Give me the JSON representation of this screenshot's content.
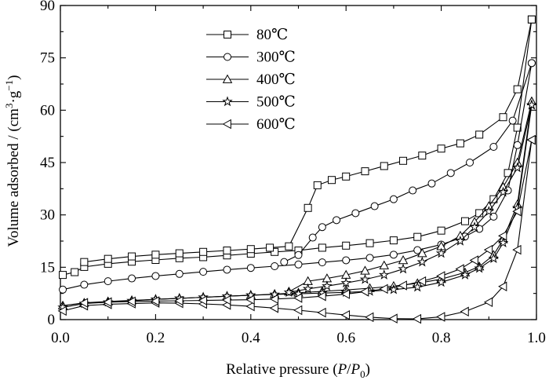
{
  "chart_data": {
    "type": "line",
    "xlabel": "Relative pressure (P/P0)",
    "xlabel_parts": {
      "main": "Relative pressure (",
      "var1": "P",
      "slash": "/",
      "var2": "P",
      "sub": "0",
      "close": ")"
    },
    "ylabel": "Volume adsorbed / (cm3·g−1)",
    "ylabel_parts": {
      "main": "Volume adsorbed / (cm",
      "sup1": "3",
      "mid": "·g",
      "sup2": "−1",
      "close": ")"
    },
    "xlim": [
      0.0,
      1.0
    ],
    "ylim": [
      0,
      90
    ],
    "x_ticks": [
      "0.0",
      "0.2",
      "0.4",
      "0.6",
      "0.8",
      "1.0"
    ],
    "x_tick_values": [
      0.0,
      0.2,
      0.4,
      0.6,
      0.8,
      1.0
    ],
    "y_ticks": [
      "0",
      "15",
      "30",
      "45",
      "60",
      "75",
      "90"
    ],
    "y_tick_values": [
      0,
      15,
      30,
      45,
      60,
      75,
      90
    ],
    "grid": false,
    "legend_position": "top-left",
    "series": [
      {
        "name": "80℃",
        "marker": "square",
        "adsorption": [
          [
            0.005,
            12.8
          ],
          [
            0.03,
            13.6
          ],
          [
            0.05,
            15.1
          ],
          [
            0.1,
            16.0
          ],
          [
            0.15,
            16.6
          ],
          [
            0.2,
            17.1
          ],
          [
            0.25,
            17.6
          ],
          [
            0.3,
            17.9
          ],
          [
            0.35,
            18.4
          ],
          [
            0.4,
            18.9
          ],
          [
            0.45,
            19.4
          ],
          [
            0.5,
            19.8
          ],
          [
            0.55,
            20.6
          ],
          [
            0.6,
            21.2
          ],
          [
            0.65,
            21.9
          ],
          [
            0.7,
            22.7
          ],
          [
            0.75,
            23.7
          ],
          [
            0.8,
            25.5
          ],
          [
            0.85,
            28.2
          ],
          [
            0.88,
            30.5
          ],
          [
            0.91,
            34.5
          ],
          [
            0.94,
            42.0
          ],
          [
            0.96,
            55.0
          ],
          [
            0.99,
            86.0
          ]
        ],
        "desorption": [
          [
            0.99,
            86.0
          ],
          [
            0.96,
            66.0
          ],
          [
            0.93,
            58.0
          ],
          [
            0.88,
            53.0
          ],
          [
            0.84,
            50.5
          ],
          [
            0.8,
            49.0
          ],
          [
            0.76,
            47.0
          ],
          [
            0.72,
            45.5
          ],
          [
            0.68,
            44.0
          ],
          [
            0.64,
            42.5
          ],
          [
            0.6,
            41.0
          ],
          [
            0.57,
            40.0
          ],
          [
            0.54,
            38.5
          ],
          [
            0.52,
            32.0
          ],
          [
            0.48,
            21.0
          ],
          [
            0.44,
            20.6
          ],
          [
            0.4,
            20.2
          ],
          [
            0.35,
            19.8
          ],
          [
            0.3,
            19.4
          ],
          [
            0.25,
            19.0
          ],
          [
            0.2,
            18.6
          ],
          [
            0.15,
            18.1
          ],
          [
            0.1,
            17.4
          ],
          [
            0.05,
            16.5
          ]
        ]
      },
      {
        "name": "300℃",
        "marker": "circle",
        "adsorption": [
          [
            0.005,
            8.6
          ],
          [
            0.05,
            10.0
          ],
          [
            0.1,
            11.0
          ],
          [
            0.15,
            11.8
          ],
          [
            0.2,
            12.5
          ],
          [
            0.25,
            13.1
          ],
          [
            0.3,
            13.7
          ],
          [
            0.35,
            14.3
          ],
          [
            0.4,
            14.8
          ],
          [
            0.45,
            15.3
          ],
          [
            0.5,
            15.8
          ],
          [
            0.55,
            16.4
          ],
          [
            0.6,
            17.0
          ],
          [
            0.65,
            17.7
          ],
          [
            0.7,
            18.6
          ],
          [
            0.75,
            19.9
          ],
          [
            0.8,
            21.5
          ],
          [
            0.85,
            23.8
          ],
          [
            0.88,
            26.0
          ],
          [
            0.91,
            29.5
          ],
          [
            0.94,
            37.0
          ],
          [
            0.96,
            50.0
          ],
          [
            0.99,
            73.5
          ]
        ],
        "desorption": [
          [
            0.99,
            73.5
          ],
          [
            0.95,
            57.0
          ],
          [
            0.91,
            49.5
          ],
          [
            0.86,
            45.0
          ],
          [
            0.82,
            42.0
          ],
          [
            0.78,
            39.0
          ],
          [
            0.74,
            37.0
          ],
          [
            0.7,
            34.5
          ],
          [
            0.66,
            32.5
          ],
          [
            0.62,
            30.5
          ],
          [
            0.58,
            28.5
          ],
          [
            0.55,
            26.5
          ],
          [
            0.53,
            23.5
          ],
          [
            0.5,
            18.5
          ],
          [
            0.47,
            16.5
          ]
        ]
      },
      {
        "name": "400℃",
        "marker": "triangle-up",
        "adsorption": [
          [
            0.005,
            4.0
          ],
          [
            0.05,
            4.8
          ],
          [
            0.1,
            5.2
          ],
          [
            0.15,
            5.5
          ],
          [
            0.2,
            5.8
          ],
          [
            0.25,
            6.1
          ],
          [
            0.3,
            6.4
          ],
          [
            0.35,
            6.7
          ],
          [
            0.4,
            7.0
          ],
          [
            0.45,
            7.3
          ],
          [
            0.5,
            7.7
          ],
          [
            0.55,
            8.1
          ],
          [
            0.6,
            8.5
          ],
          [
            0.65,
            9.0
          ],
          [
            0.7,
            9.6
          ],
          [
            0.75,
            10.4
          ],
          [
            0.8,
            11.6
          ],
          [
            0.85,
            13.5
          ],
          [
            0.88,
            15.2
          ],
          [
            0.91,
            18.5
          ],
          [
            0.93,
            23.0
          ],
          [
            0.96,
            33.0
          ],
          [
            0.99,
            62.5
          ]
        ],
        "desorption": [
          [
            0.99,
            62.5
          ],
          [
            0.96,
            45.0
          ],
          [
            0.93,
            38.0
          ],
          [
            0.9,
            32.5
          ],
          [
            0.87,
            28.0
          ],
          [
            0.84,
            24.0
          ],
          [
            0.8,
            21.0
          ],
          [
            0.76,
            19.0
          ],
          [
            0.72,
            17.0
          ],
          [
            0.68,
            15.5
          ],
          [
            0.64,
            14.0
          ],
          [
            0.6,
            12.8
          ],
          [
            0.56,
            11.8
          ],
          [
            0.52,
            11.0
          ],
          [
            0.48,
            8.0
          ]
        ]
      },
      {
        "name": "500℃",
        "marker": "star",
        "adsorption": [
          [
            0.005,
            3.5
          ],
          [
            0.05,
            4.6
          ],
          [
            0.1,
            5.0
          ],
          [
            0.15,
            5.4
          ],
          [
            0.2,
            5.8
          ],
          [
            0.25,
            6.1
          ],
          [
            0.3,
            6.4
          ],
          [
            0.35,
            6.7
          ],
          [
            0.4,
            7.0
          ],
          [
            0.45,
            7.2
          ],
          [
            0.5,
            7.4
          ],
          [
            0.55,
            7.6
          ],
          [
            0.6,
            7.8
          ],
          [
            0.65,
            8.1
          ],
          [
            0.7,
            8.6
          ],
          [
            0.75,
            9.3
          ],
          [
            0.8,
            10.7
          ],
          [
            0.85,
            12.8
          ],
          [
            0.88,
            14.7
          ],
          [
            0.91,
            17.5
          ],
          [
            0.93,
            22.0
          ],
          [
            0.96,
            32.0
          ],
          [
            0.99,
            61.5
          ]
        ],
        "desorption": [
          [
            0.99,
            61.5
          ],
          [
            0.96,
            43.5
          ],
          [
            0.93,
            36.5
          ],
          [
            0.9,
            31.0
          ],
          [
            0.87,
            26.5
          ],
          [
            0.84,
            22.5
          ],
          [
            0.8,
            19.0
          ],
          [
            0.76,
            16.5
          ],
          [
            0.72,
            14.5
          ],
          [
            0.68,
            12.8
          ],
          [
            0.64,
            11.5
          ],
          [
            0.6,
            10.5
          ],
          [
            0.56,
            9.6
          ],
          [
            0.52,
            8.8
          ],
          [
            0.48,
            7.8
          ]
        ]
      },
      {
        "name": "600℃",
        "marker": "triangle-left",
        "adsorption": [
          [
            0.005,
            2.5
          ],
          [
            0.05,
            4.0
          ],
          [
            0.1,
            4.4
          ],
          [
            0.15,
            4.6
          ],
          [
            0.2,
            4.8
          ],
          [
            0.25,
            4.7
          ],
          [
            0.3,
            4.5
          ],
          [
            0.35,
            4.2
          ],
          [
            0.4,
            3.8
          ],
          [
            0.45,
            3.3
          ],
          [
            0.5,
            2.7
          ],
          [
            0.55,
            2.0
          ],
          [
            0.6,
            1.3
          ],
          [
            0.65,
            0.7
          ],
          [
            0.7,
            0.3
          ],
          [
            0.75,
            0.2
          ],
          [
            0.8,
            0.8
          ],
          [
            0.85,
            2.3
          ],
          [
            0.9,
            5.0
          ],
          [
            0.93,
            9.5
          ],
          [
            0.96,
            20.0
          ],
          [
            0.99,
            51.5
          ]
        ],
        "desorption": [
          [
            0.99,
            51.5
          ],
          [
            0.96,
            31.0
          ],
          [
            0.93,
            24.0
          ],
          [
            0.9,
            20.0
          ],
          [
            0.87,
            17.0
          ],
          [
            0.84,
            14.5
          ],
          [
            0.8,
            12.5
          ],
          [
            0.76,
            11.0
          ],
          [
            0.72,
            9.8
          ],
          [
            0.68,
            8.8
          ],
          [
            0.64,
            8.0
          ],
          [
            0.6,
            7.3
          ],
          [
            0.55,
            6.7
          ],
          [
            0.5,
            6.2
          ],
          [
            0.45,
            5.9
          ],
          [
            0.4,
            5.7
          ],
          [
            0.35,
            5.6
          ],
          [
            0.3,
            5.5
          ],
          [
            0.25,
            5.4
          ],
          [
            0.2,
            5.3
          ],
          [
            0.15,
            5.2
          ],
          [
            0.1,
            5.0
          ],
          [
            0.05,
            4.8
          ]
        ]
      }
    ]
  }
}
